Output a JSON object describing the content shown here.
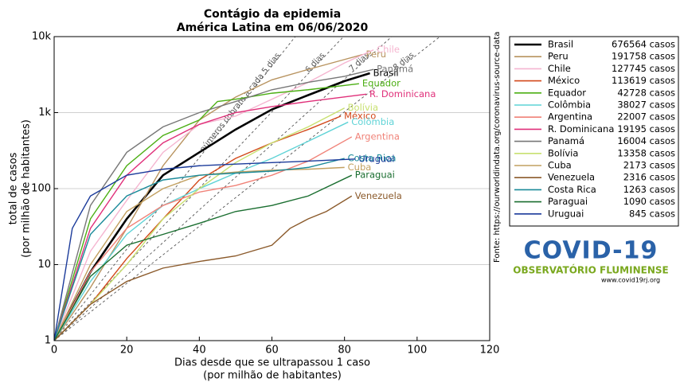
{
  "chart_data": {
    "type": "line",
    "title": "Contágio da epidemia",
    "subtitle": "América Latina em 06/06/2020",
    "xlabel": [
      "Dias desde que se ultrapassou 1 caso",
      "(por milhão de habitantes)"
    ],
    "ylabel": [
      "total de casos",
      "(por milhão de habitantes)"
    ],
    "xlim": [
      0,
      120
    ],
    "xticks": [
      0,
      20,
      40,
      60,
      80,
      100,
      120
    ],
    "ylim": [
      1,
      10000
    ],
    "yticks": [
      1,
      10,
      100,
      {
        "value": 1000,
        "label": "1k"
      },
      {
        "value": 10000,
        "label": "10k"
      }
    ],
    "log_y": true,
    "grid": true,
    "legend": "outside-right",
    "source": "Fonte: https://ourworldindata.org/coronavirus-source-data",
    "doubling_lines": [
      {
        "days": 5,
        "label": "números dobram a cada 5 dias"
      },
      {
        "days": 6,
        "label": "6 dias"
      },
      {
        "days": 7,
        "label": "7 dias"
      },
      {
        "days": 8,
        "label": "8 dias"
      }
    ],
    "series": [
      {
        "name": "Brasil",
        "cases": "676564 casos",
        "color": "#000000",
        "x": [
          0,
          10,
          20,
          30,
          40,
          50,
          60,
          70,
          80,
          87
        ],
        "values": [
          1,
          8,
          40,
          150,
          300,
          600,
          1100,
          1700,
          2600,
          3300
        ]
      },
      {
        "name": "Peru",
        "cases": "191758 casos",
        "color": "#b8935f",
        "x": [
          0,
          10,
          20,
          30,
          40,
          50,
          60,
          70,
          80,
          85
        ],
        "values": [
          1,
          5,
          30,
          200,
          800,
          1600,
          2700,
          3700,
          5000,
          5800
        ]
      },
      {
        "name": "Chile",
        "cases": "127745 casos",
        "color": "#f5b5d0",
        "x": [
          0,
          10,
          20,
          30,
          40,
          50,
          60,
          70,
          80,
          88
        ],
        "values": [
          1,
          15,
          70,
          300,
          700,
          900,
          1500,
          2500,
          4500,
          6700
        ]
      },
      {
        "name": "México",
        "cases": "113619 casos",
        "color": "#d2481a",
        "x": [
          0,
          10,
          20,
          30,
          40,
          50,
          60,
          70,
          79
        ],
        "values": [
          1,
          3,
          12,
          40,
          130,
          250,
          400,
          600,
          900
        ]
      },
      {
        "name": "Equador",
        "cases": "42728 casos",
        "color": "#4caf14",
        "x": [
          0,
          10,
          20,
          30,
          40,
          45,
          50,
          60,
          70,
          84
        ],
        "values": [
          1,
          40,
          200,
          500,
          800,
          1400,
          1500,
          1800,
          2000,
          2400
        ]
      },
      {
        "name": "Colômbia",
        "cases": "38027 casos",
        "color": "#5fd3d6",
        "x": [
          0,
          10,
          20,
          30,
          40,
          50,
          60,
          70,
          81
        ],
        "values": [
          1,
          6,
          25,
          60,
          100,
          160,
          250,
          420,
          750
        ]
      },
      {
        "name": "Argentina",
        "cases": "22007 casos",
        "color": "#f08278",
        "x": [
          0,
          10,
          20,
          30,
          40,
          50,
          60,
          70,
          82
        ],
        "values": [
          1,
          8,
          30,
          60,
          90,
          110,
          150,
          230,
          480
        ]
      },
      {
        "name": "R. Dominicana",
        "cases": "19195 casos",
        "color": "#e0307a",
        "x": [
          0,
          10,
          20,
          30,
          40,
          50,
          60,
          70,
          86
        ],
        "values": [
          1,
          30,
          150,
          400,
          700,
          1000,
          1200,
          1400,
          1750
        ]
      },
      {
        "name": "Panamá",
        "cases": "16004 casos",
        "color": "#777777",
        "x": [
          0,
          10,
          20,
          30,
          40,
          50,
          60,
          70,
          80,
          88
        ],
        "values": [
          1,
          60,
          300,
          650,
          1000,
          1400,
          2000,
          2500,
          3000,
          3700
        ]
      },
      {
        "name": "Bolívia",
        "cases": "13358 casos",
        "color": "#c8e070",
        "x": [
          0,
          10,
          20,
          30,
          40,
          50,
          60,
          70,
          80
        ],
        "values": [
          1,
          3,
          10,
          40,
          100,
          220,
          400,
          650,
          1150
        ]
      },
      {
        "name": "Cuba",
        "cases": "2173 casos",
        "color": "#c2a060",
        "x": [
          0,
          10,
          20,
          30,
          40,
          50,
          60,
          70,
          80
        ],
        "values": [
          1,
          10,
          50,
          100,
          150,
          165,
          175,
          180,
          190
        ]
      },
      {
        "name": "Venezuela",
        "cases": "2316 casos",
        "color": "#8b5a2b",
        "x": [
          0,
          10,
          20,
          30,
          40,
          50,
          60,
          65,
          70,
          75,
          82
        ],
        "values": [
          1,
          3,
          6,
          9,
          11,
          13,
          18,
          30,
          40,
          50,
          80
        ]
      },
      {
        "name": "Costa Rica",
        "cases": "1263 casos",
        "color": "#1a8a99",
        "x": [
          0,
          10,
          20,
          30,
          40,
          50,
          60,
          70,
          80
        ],
        "values": [
          1,
          25,
          80,
          130,
          150,
          160,
          170,
          190,
          250
        ]
      },
      {
        "name": "Paraguai",
        "cases": "1090 casos",
        "color": "#1a6e30",
        "x": [
          0,
          10,
          20,
          30,
          40,
          50,
          60,
          70,
          82
        ],
        "values": [
          1,
          7,
          18,
          25,
          35,
          50,
          60,
          80,
          150
        ]
      },
      {
        "name": "Uruguai",
        "cases": "845 casos",
        "color": "#1a3a9a",
        "x": [
          0,
          5,
          10,
          20,
          30,
          40,
          50,
          60,
          70,
          83
        ],
        "values": [
          1,
          30,
          80,
          150,
          180,
          200,
          210,
          220,
          230,
          245
        ]
      }
    ]
  },
  "logo": {
    "title": "COVID-19",
    "subtitle": "OBSERVATÓRIO FLUMINENSE",
    "url": "www.covid19rj.org"
  }
}
